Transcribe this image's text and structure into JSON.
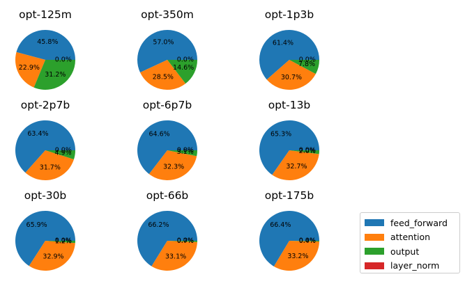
{
  "colors": [
    "#1f77b4",
    "#ff7f0e",
    "#2ca02c",
    "#d62728"
  ],
  "chart_data": {
    "type": "pie",
    "categories": [
      "feed_forward",
      "attention",
      "output",
      "layer_norm"
    ],
    "legend_position": "lower-right",
    "charts": [
      {
        "title": "opt-125m",
        "values": [
          45.8,
          22.9,
          31.2,
          0.0
        ],
        "labels": [
          "45.8%",
          "22.9%",
          "31.2%",
          "0.0%"
        ]
      },
      {
        "title": "opt-350m",
        "values": [
          57.0,
          28.5,
          14.6,
          0.0
        ],
        "labels": [
          "57.0%",
          "28.5%",
          "14.6%",
          "0.0%"
        ]
      },
      {
        "title": "opt-1p3b",
        "values": [
          61.4,
          30.7,
          7.8,
          0.0
        ],
        "labels": [
          "61.4%",
          "30.7%",
          "7.8%",
          "0.0%"
        ]
      },
      {
        "title": "opt-2p7b",
        "values": [
          63.4,
          31.7,
          4.9,
          0.0
        ],
        "labels": [
          "63.4%",
          "31.7%",
          "4.9%",
          "0.0%"
        ]
      },
      {
        "title": "opt-6p7b",
        "values": [
          64.6,
          32.3,
          3.1,
          0.0
        ],
        "labels": [
          "64.6%",
          "32.3%",
          "3.1%",
          "0.0%"
        ]
      },
      {
        "title": "opt-13b",
        "values": [
          65.3,
          32.7,
          2.0,
          0.0
        ],
        "labels": [
          "65.3%",
          "32.7%",
          "2.0%",
          "0.0%"
        ]
      },
      {
        "title": "opt-30b",
        "values": [
          65.9,
          32.9,
          1.2,
          0.0
        ],
        "labels": [
          "65.9%",
          "32.9%",
          "1.2%",
          "0.0%"
        ]
      },
      {
        "title": "opt-66b",
        "values": [
          66.2,
          33.1,
          0.7,
          0.0
        ],
        "labels": [
          "66.2%",
          "33.1%",
          "0.7%",
          "0.0%"
        ]
      },
      {
        "title": "opt-175b",
        "values": [
          66.4,
          33.2,
          0.4,
          0.0
        ],
        "labels": [
          "66.4%",
          "33.2%",
          "0.4%",
          "0.0%"
        ]
      }
    ]
  }
}
